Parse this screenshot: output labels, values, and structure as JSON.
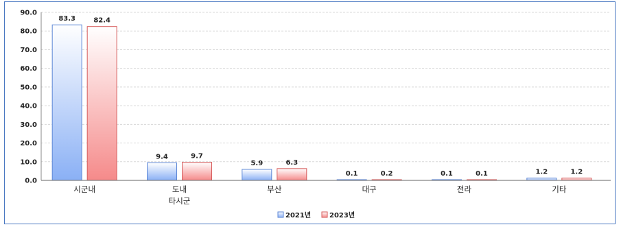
{
  "chart_data": {
    "type": "bar",
    "title": "",
    "xlabel": "",
    "ylabel": "",
    "ylim": [
      0,
      90
    ],
    "yticks": [
      "0.0",
      "10.0",
      "20.0",
      "30.0",
      "40.0",
      "50.0",
      "60.0",
      "70.0",
      "80.0",
      "90.0"
    ],
    "categories": [
      "시군내",
      "도내\n타시군",
      "부산",
      "대구",
      "전라",
      "기타"
    ],
    "series": [
      {
        "name": "2021년",
        "values": [
          83.3,
          9.4,
          5.9,
          0.1,
          0.1,
          1.2
        ],
        "color": "#7fa8f0"
      },
      {
        "name": "2023년",
        "values": [
          82.4,
          9.7,
          6.3,
          0.2,
          0.1,
          1.2
        ],
        "color": "#f07f7f"
      }
    ],
    "grid": true,
    "legend": "bottom"
  }
}
